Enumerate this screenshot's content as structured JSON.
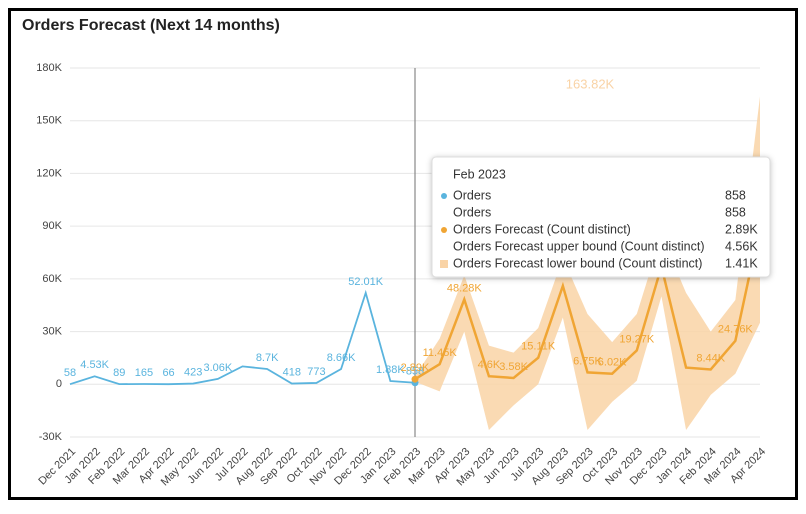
{
  "chart_data": {
    "type": "line",
    "title": "Orders Forecast (Next 14 months)",
    "categories": [
      "Dec 2021",
      "Jan 2022",
      "Feb 2022",
      "Mar 2022",
      "Apr 2022",
      "May 2022",
      "Jun 2022",
      "Jul 2022",
      "Aug 2022",
      "Sep 2022",
      "Oct 2022",
      "Nov 2022",
      "Dec 2022",
      "Jan 2023",
      "Feb 2023",
      "Mar 2023",
      "Apr 2023",
      "May 2023",
      "Jun 2023",
      "Jul 2023",
      "Aug 2023",
      "Sep 2023",
      "Oct 2023",
      "Nov 2023",
      "Dec 2023",
      "Jan 2024",
      "Feb 2024",
      "Mar 2024",
      "Apr 2024"
    ],
    "series": [
      {
        "name": "Orders",
        "color": "#5ab4de",
        "values": [
          58,
          4530,
          89,
          165,
          66,
          423,
          3060,
          10200,
          8700,
          418,
          773,
          8660,
          52010,
          1880,
          858,
          null,
          null,
          null,
          null,
          null,
          null,
          null,
          null,
          null,
          null,
          null,
          null,
          null,
          null
        ],
        "value_labels": [
          "58",
          "4.53K",
          "89",
          "165",
          "66",
          "423",
          "3.06K",
          null,
          "8.7K",
          "418",
          "773",
          "8.66K",
          "52.01K",
          "1.88K",
          "858",
          null,
          null,
          null,
          null,
          null,
          null,
          null,
          null,
          null,
          null,
          null,
          null,
          null,
          null
        ]
      },
      {
        "name": "Orders Forecast (Count distinct)",
        "color": "#f0a534",
        "values": [
          null,
          null,
          null,
          null,
          null,
          null,
          null,
          null,
          null,
          null,
          null,
          null,
          null,
          null,
          2890,
          11450,
          48280,
          4600,
          3580,
          15110,
          56000,
          6750,
          6020,
          19270,
          67000,
          9500,
          8440,
          24760,
          90000
        ],
        "value_labels": [
          null,
          null,
          null,
          null,
          null,
          null,
          null,
          null,
          null,
          null,
          null,
          null,
          null,
          null,
          "2.89K",
          "11.45K",
          "48.28K",
          "4.6K",
          "3.58K",
          "15.11K",
          null,
          "6.75K",
          "6.02K",
          "19.27K",
          null,
          null,
          "8.44K",
          "24.76K",
          null
        ]
      },
      {
        "name": "Orders Forecast upper bound (Count distinct)",
        "color": "#f9d3a6",
        "values": [
          null,
          null,
          null,
          null,
          null,
          null,
          null,
          null,
          null,
          null,
          null,
          null,
          null,
          null,
          4560,
          26000,
          62000,
          22000,
          18000,
          32000,
          72000,
          40000,
          24000,
          40000,
          85000,
          52000,
          30000,
          48000,
          163820
        ],
        "value_labels": [
          null,
          null,
          null,
          null,
          null,
          null,
          null,
          null,
          null,
          null,
          null,
          null,
          null,
          null,
          null,
          null,
          null,
          null,
          null,
          null,
          null,
          null,
          null,
          null,
          null,
          null,
          null,
          null,
          "163.82K"
        ]
      },
      {
        "name": "Orders Forecast lower bound (Count distinct)",
        "color": "#f9d3a6",
        "values": [
          null,
          null,
          null,
          null,
          null,
          null,
          null,
          null,
          null,
          null,
          null,
          null,
          null,
          null,
          1410,
          -4000,
          30000,
          -26000,
          -12000,
          0,
          38000,
          -26000,
          -10000,
          2000,
          50000,
          -26000,
          -6000,
          6000,
          35000
        ]
      }
    ],
    "ylim": [
      -30000,
      180000
    ],
    "yticks": [
      {
        "value": -30000,
        "label": "-30K"
      },
      0,
      {
        "value": 30000,
        "label": "30K"
      },
      {
        "value": 60000,
        "label": "60K"
      },
      {
        "value": 90000,
        "label": "90K"
      },
      {
        "value": 120000,
        "label": "120K"
      },
      {
        "value": 150000,
        "label": "150K"
      },
      {
        "value": 180000,
        "label": "180K"
      }
    ],
    "grid": true,
    "tooltip": {
      "values": [
        "858",
        "858",
        "2.89K",
        "4.56K",
        "1.41K"
      ]
    }
  }
}
